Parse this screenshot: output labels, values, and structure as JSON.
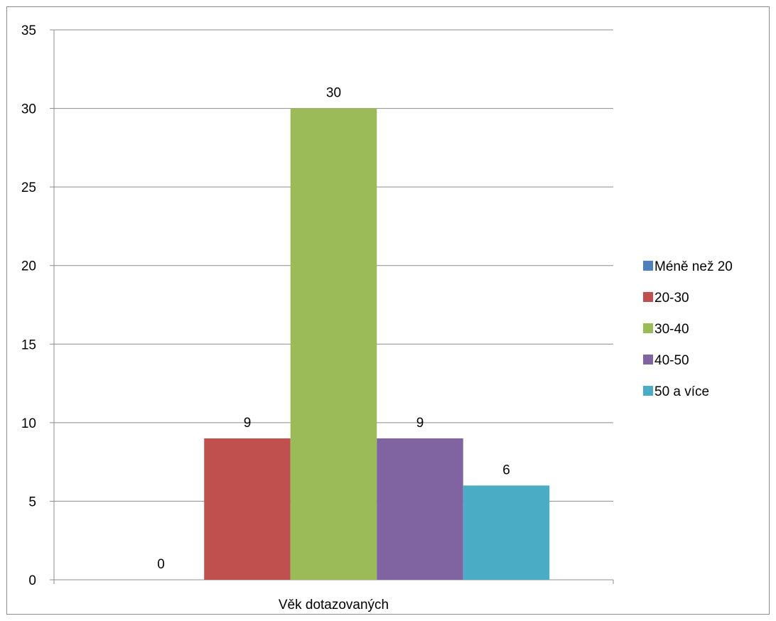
{
  "chart_data": {
    "type": "bar",
    "categories": [
      "Věk dotazovaných"
    ],
    "series": [
      {
        "name": "Méně než 20",
        "values": [
          0
        ],
        "color": "#4F81BD"
      },
      {
        "name": "20-30",
        "values": [
          9
        ],
        "color": "#C0504D"
      },
      {
        "name": "30-40",
        "values": [
          30
        ],
        "color": "#9BBB59"
      },
      {
        "name": "40-50",
        "values": [
          9
        ],
        "color": "#8064A2"
      },
      {
        "name": "50 a více",
        "values": [
          6
        ],
        "color": "#4BACC6"
      }
    ],
    "ylim": [
      0,
      35
    ],
    "yticks": [
      0,
      5,
      10,
      15,
      20,
      25,
      30,
      35
    ],
    "grid": true,
    "data_labels": true,
    "legend_position": "right"
  }
}
